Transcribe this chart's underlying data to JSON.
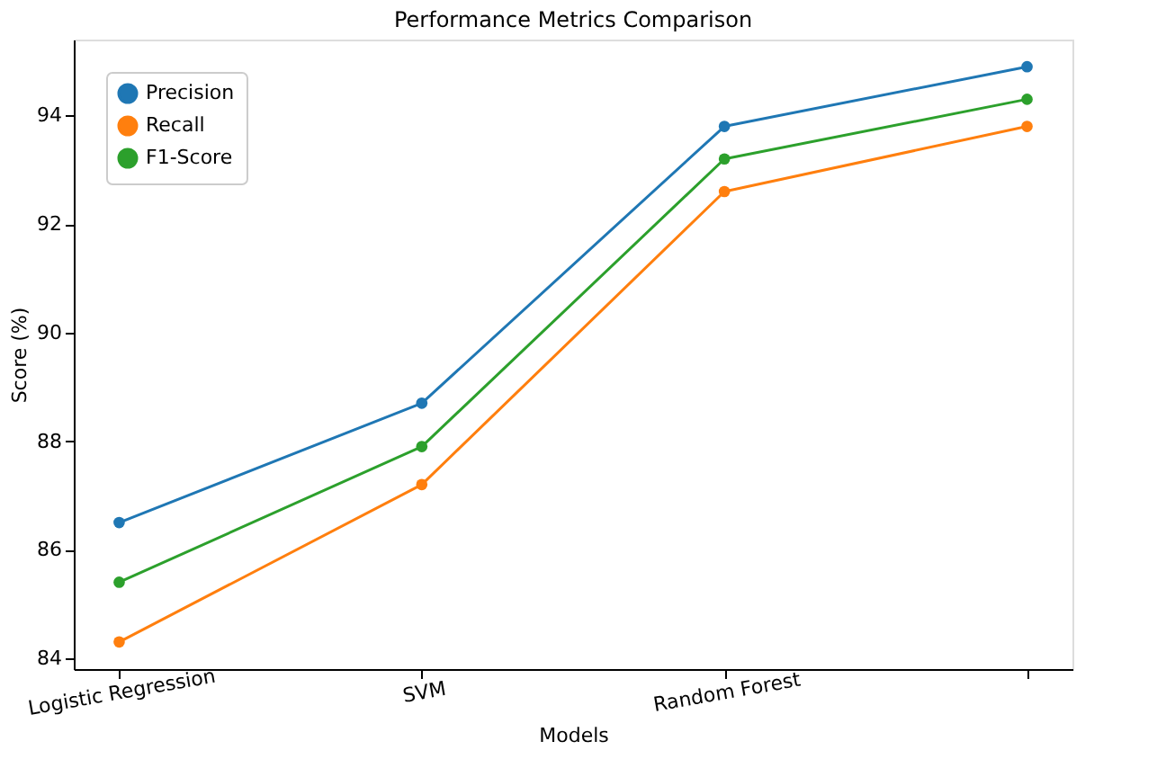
{
  "chart_data": {
    "type": "line",
    "title": "Performance Metrics Comparison",
    "xlabel": "Models",
    "ylabel": "Score (%)",
    "categories": [
      "Logistic Regression",
      "SVM",
      "Random Forest",
      null
    ],
    "series": [
      {
        "name": "Precision",
        "color": "#1f77b4",
        "values": [
          86.5,
          88.7,
          93.8,
          94.9
        ]
      },
      {
        "name": "Recall",
        "color": "#ff7f0e",
        "values": [
          84.3,
          87.2,
          92.6,
          93.8
        ]
      },
      {
        "name": "F1-Score",
        "color": "#2ca02c",
        "values": [
          85.4,
          87.9,
          93.2,
          94.3
        ]
      }
    ],
    "ylim": [
      83.8,
      95.4
    ],
    "yticks": [
      84,
      86,
      88,
      90,
      92,
      94
    ],
    "grid": false,
    "legend": "top left",
    "marker": "circle",
    "line_style": "solid"
  }
}
